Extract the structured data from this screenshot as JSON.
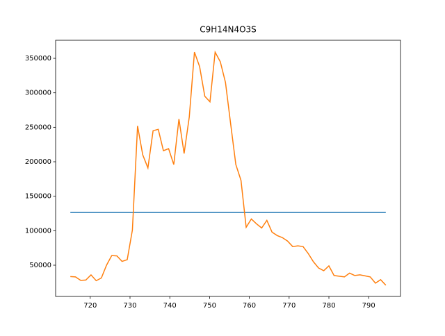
{
  "chart_data": {
    "type": "line",
    "title": "C9H14N4O3S",
    "xlim": [
      711.3,
      798.0
    ],
    "xticks": [
      720,
      730,
      740,
      750,
      760,
      770,
      780,
      790
    ],
    "ylim": [
      4700,
      376200
    ],
    "yticks": [
      50000,
      100000,
      150000,
      200000,
      250000,
      300000,
      350000
    ],
    "series": [
      {
        "color": "#1f77b4",
        "x": [
          715,
          794.3
        ],
        "values": [
          126500,
          126500
        ]
      },
      {
        "color": "#ff7f0e",
        "x": [
          715,
          716.3,
          717.6,
          718.9,
          720.2,
          721.5,
          722.8,
          724.1,
          725.4,
          726.7,
          728,
          729.3,
          730.6,
          731.9,
          733.2,
          734.5,
          735.8,
          737.1,
          738.4,
          739.7,
          741,
          742.3,
          743.6,
          744.9,
          746.2,
          747.5,
          748.8,
          750.1,
          751.4,
          752.7,
          754,
          755.3,
          756.6,
          757.9,
          759.2,
          760.5,
          761.8,
          763.1,
          764.4,
          765.7,
          767,
          768.3,
          769.6,
          770.9,
          772.2,
          773.5,
          774.8,
          776.1,
          777.4,
          778.7,
          780,
          781.3,
          782.6,
          783.9,
          785.2,
          786.5,
          787.8,
          789.1,
          790.4,
          791.7,
          793,
          794.3
        ],
        "values": [
          33500,
          33000,
          28000,
          28500,
          36000,
          27500,
          31500,
          50000,
          64000,
          63500,
          55500,
          58000,
          101000,
          252000,
          210000,
          191000,
          245000,
          247000,
          216000,
          219000,
          196000,
          262000,
          212000,
          265000,
          359000,
          338000,
          295000,
          287000,
          359000,
          345000,
          315000,
          255000,
          196000,
          173000,
          105000,
          117000,
          110000,
          104000,
          115000,
          98000,
          93000,
          90000,
          85000,
          77000,
          78000,
          77000,
          67000,
          55000,
          46000,
          42000,
          49000,
          35000,
          34000,
          33000,
          38500,
          35000,
          36000,
          34500,
          33000,
          24000,
          29000,
          21000
        ]
      }
    ]
  }
}
